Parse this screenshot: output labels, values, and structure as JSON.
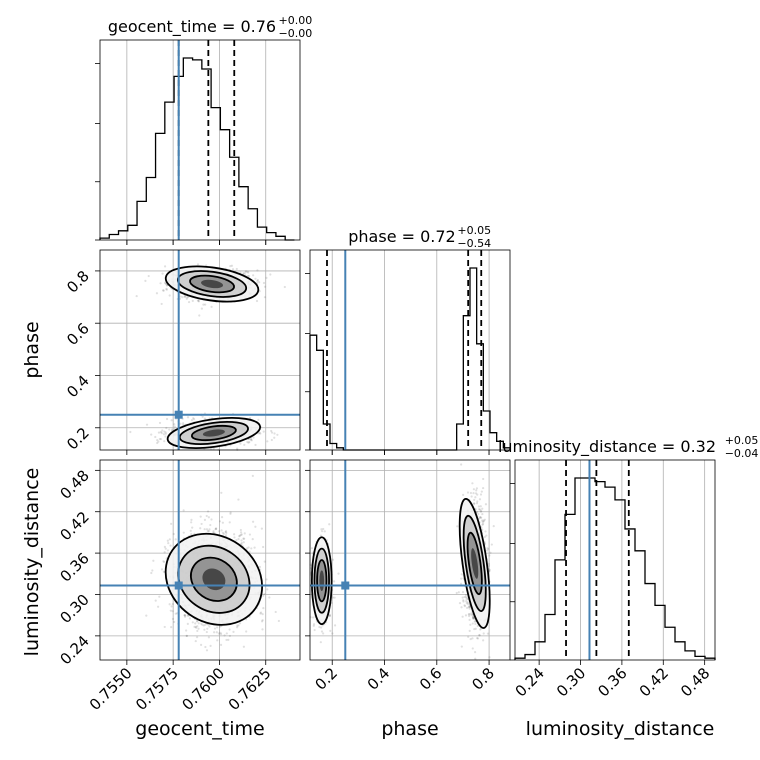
{
  "colors": {
    "truth": "#4682b4",
    "hist": "#000000",
    "grid": "#b0b0b0",
    "point": "#555555"
  },
  "chart_data": {
    "type": "corner",
    "parameters": [
      "geocent_time",
      "phase",
      "luminosity_distance"
    ],
    "axis_labels": {
      "geocent_time": "geocent_time",
      "phase": "phase",
      "luminosity_distance": "luminosity_distance"
    },
    "titles": [
      {
        "param": "geocent_time",
        "text": "geocent_time = 0.76",
        "upper": "+0.00",
        "lower": "−0.00"
      },
      {
        "param": "phase",
        "text": "phase = 0.72",
        "upper": "+0.05",
        "lower": "−0.54"
      },
      {
        "param": "luminosity_distance",
        "text": "luminosity_distance = 0.32",
        "upper": "+0.05",
        "lower": "−0.04"
      }
    ],
    "ranges": {
      "geocent_time": [
        0.75355,
        0.76435
      ],
      "phase": [
        0.115,
        0.88
      ],
      "luminosity_distance": [
        0.205,
        0.495
      ]
    },
    "ticks": {
      "geocent_time": {
        "values": [
          0.755,
          0.7575,
          0.76,
          0.7625
        ],
        "labels": [
          "0.7550",
          "0.7575",
          "0.7600",
          "0.7625"
        ]
      },
      "phase": {
        "values": [
          0.2,
          0.4,
          0.6,
          0.8
        ],
        "labels": [
          "0.2",
          "0.4",
          "0.6",
          "0.8"
        ]
      },
      "luminosity_distance": {
        "values": [
          0.24,
          0.3,
          0.36,
          0.42,
          0.48
        ],
        "labels": [
          "0.24",
          "0.30",
          "0.36",
          "0.42",
          "0.48"
        ]
      }
    },
    "truths": {
      "geocent_time": 0.7578,
      "phase": 0.25,
      "luminosity_distance": 0.313
    },
    "quantiles": {
      "geocent_time": [
        0.7578,
        0.7594,
        0.7608
      ],
      "phase": [
        0.18,
        0.72,
        0.77
      ],
      "luminosity_distance": [
        0.279,
        0.323,
        0.37
      ]
    },
    "histograms": {
      "geocent_time": {
        "edges_start": 0.75355,
        "bin_width": 0.0005,
        "counts": [
          1,
          3,
          5,
          8,
          21,
          34,
          58,
          75,
          89,
          99,
          98,
          93,
          72,
          60,
          45,
          29,
          17,
          7,
          4,
          2,
          0
        ]
      },
      "phase": {
        "edges_start": 0.115,
        "bin_width": 0.0255,
        "counts": [
          53,
          46,
          12,
          3,
          1,
          0,
          0,
          0,
          0,
          0,
          0,
          0,
          0,
          0,
          0,
          0,
          0,
          0,
          0,
          0,
          0,
          0,
          12,
          62,
          84,
          49,
          18,
          8,
          4,
          1
        ]
      },
      "luminosity_distance": {
        "edges_start": 0.205,
        "bin_width": 0.0145,
        "counts": [
          1,
          3,
          10,
          25,
          55,
          80,
          100,
          100,
          98,
          95,
          88,
          72,
          60,
          42,
          30,
          18,
          10,
          5,
          2,
          1
        ]
      }
    },
    "contour_levels": 4,
    "show_grid": true
  }
}
